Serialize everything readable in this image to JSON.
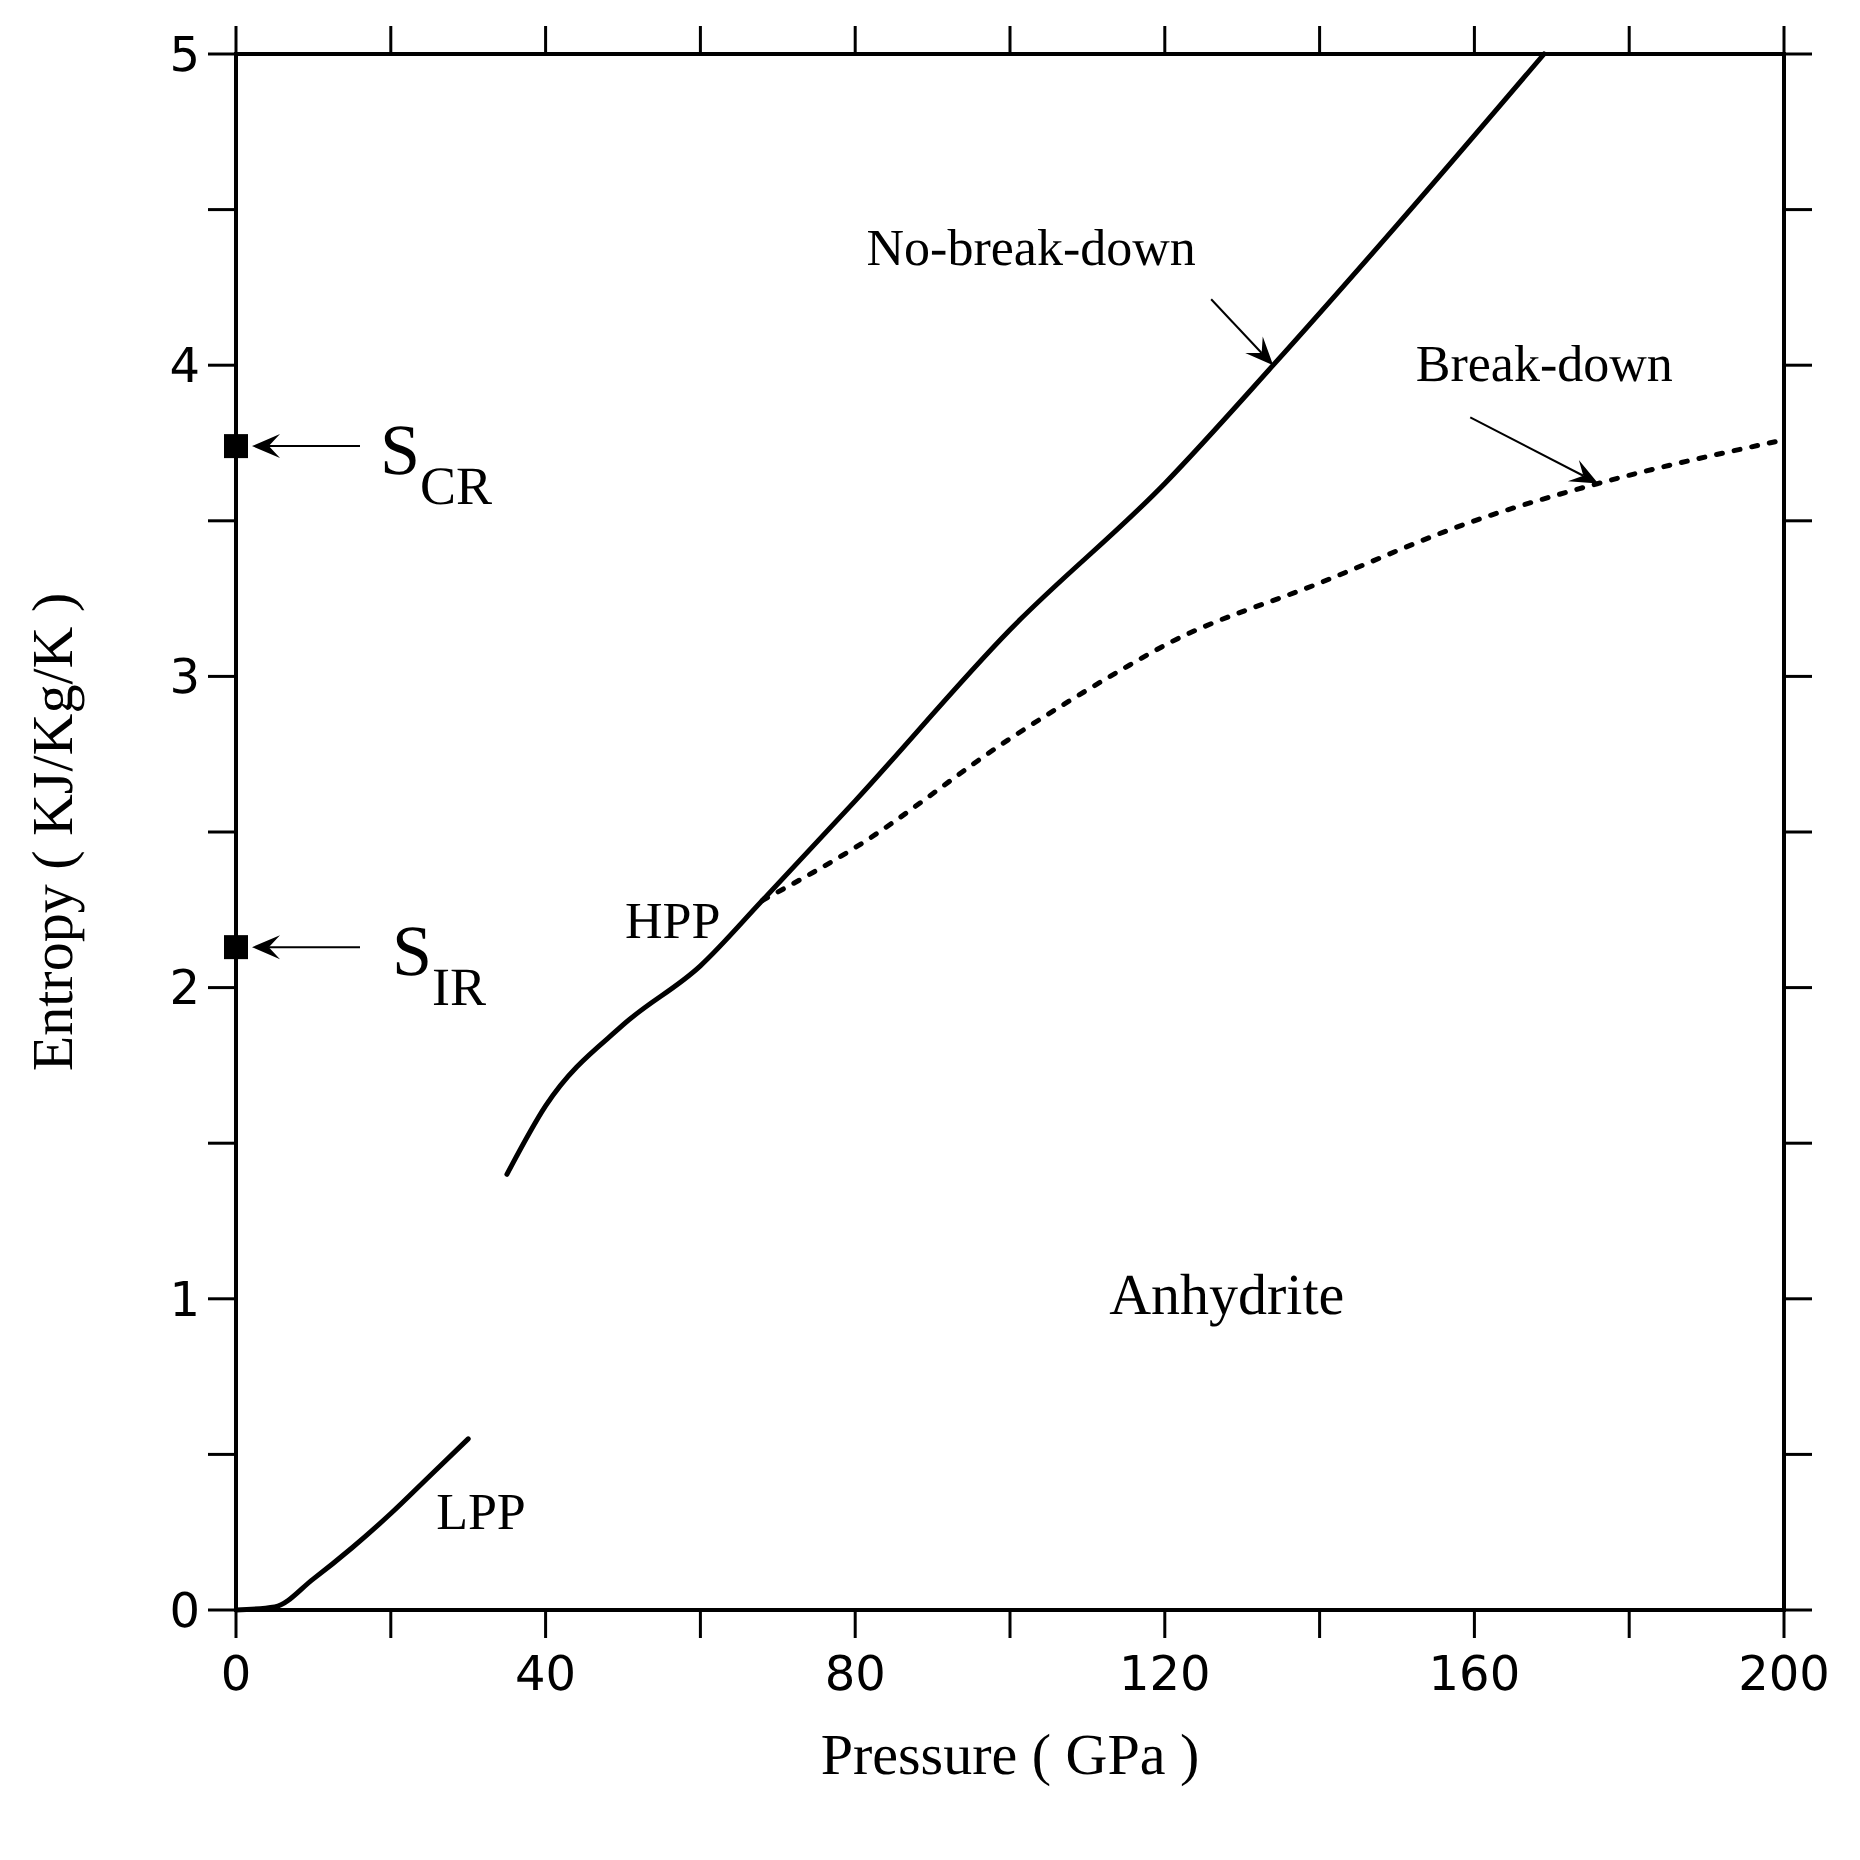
{
  "chart_data": {
    "type": "line",
    "xlabel": "Pressure ( GPa )",
    "ylabel": "Entropy ( KJ/Kg/K )",
    "xlim": [
      0,
      200
    ],
    "ylim": [
      0,
      5
    ],
    "xticks": [
      0,
      {
        "value": 20,
        "label": null
      },
      40,
      {
        "value": 60,
        "label": null
      },
      80,
      {
        "value": 100,
        "label": null
      },
      120,
      {
        "value": 140,
        "label": null
      },
      160,
      {
        "value": 180,
        "label": null
      },
      200
    ],
    "yticks": [
      0,
      {
        "value": 0.5,
        "label": null
      },
      1,
      {
        "value": 1.5,
        "label": null
      },
      2,
      {
        "value": 2.5,
        "label": null
      },
      3,
      {
        "value": 3.5,
        "label": null
      },
      4,
      {
        "value": 4.5,
        "label": null
      },
      5
    ],
    "grid": false,
    "series": [
      {
        "color": "#000000",
        "line_style": "solid",
        "x": [
          0,
          5,
          10,
          15,
          20,
          25,
          30
        ],
        "values": [
          0,
          0.01,
          0.1,
          0.2,
          0.31,
          0.43,
          0.55
        ]
      },
      {
        "color": "#000000",
        "line_style": "solid",
        "x": [
          35,
          40,
          50,
          60,
          68,
          80,
          100,
          120,
          134,
          150,
          169
        ],
        "values": [
          1.4,
          1.62,
          1.88,
          2.07,
          2.28,
          2.6,
          3.15,
          3.62,
          4.0,
          4.45,
          5.0
        ]
      },
      {
        "color": "#000000",
        "line_style": "dotted",
        "x": [
          68,
          80,
          100,
          115,
          120,
          140,
          160,
          176,
          200
        ],
        "values": [
          2.28,
          2.45,
          2.8,
          3.03,
          3.1,
          3.3,
          3.5,
          3.62,
          3.76
        ]
      },
      {
        "type": "scatter",
        "marker": "square",
        "color": "#000000",
        "x": [
          0,
          0
        ],
        "values": [
          3.74,
          2.13
        ]
      }
    ],
    "annotations": [
      {
        "text": "S$_{CR}$",
        "x": 0,
        "y": 3.74
      },
      {
        "text": "S$_{IR}$",
        "x": 0,
        "y": 2.13
      },
      {
        "text": "HPP",
        "x": 68,
        "y": 2.28
      },
      {
        "text": "LPP",
        "x": 30,
        "y": 0.55
      },
      {
        "text": "No-break-down",
        "x": 134,
        "y": 4.0
      },
      {
        "text": "Break-down",
        "x": 176,
        "y": 3.62
      },
      "Anhydrite"
    ]
  }
}
